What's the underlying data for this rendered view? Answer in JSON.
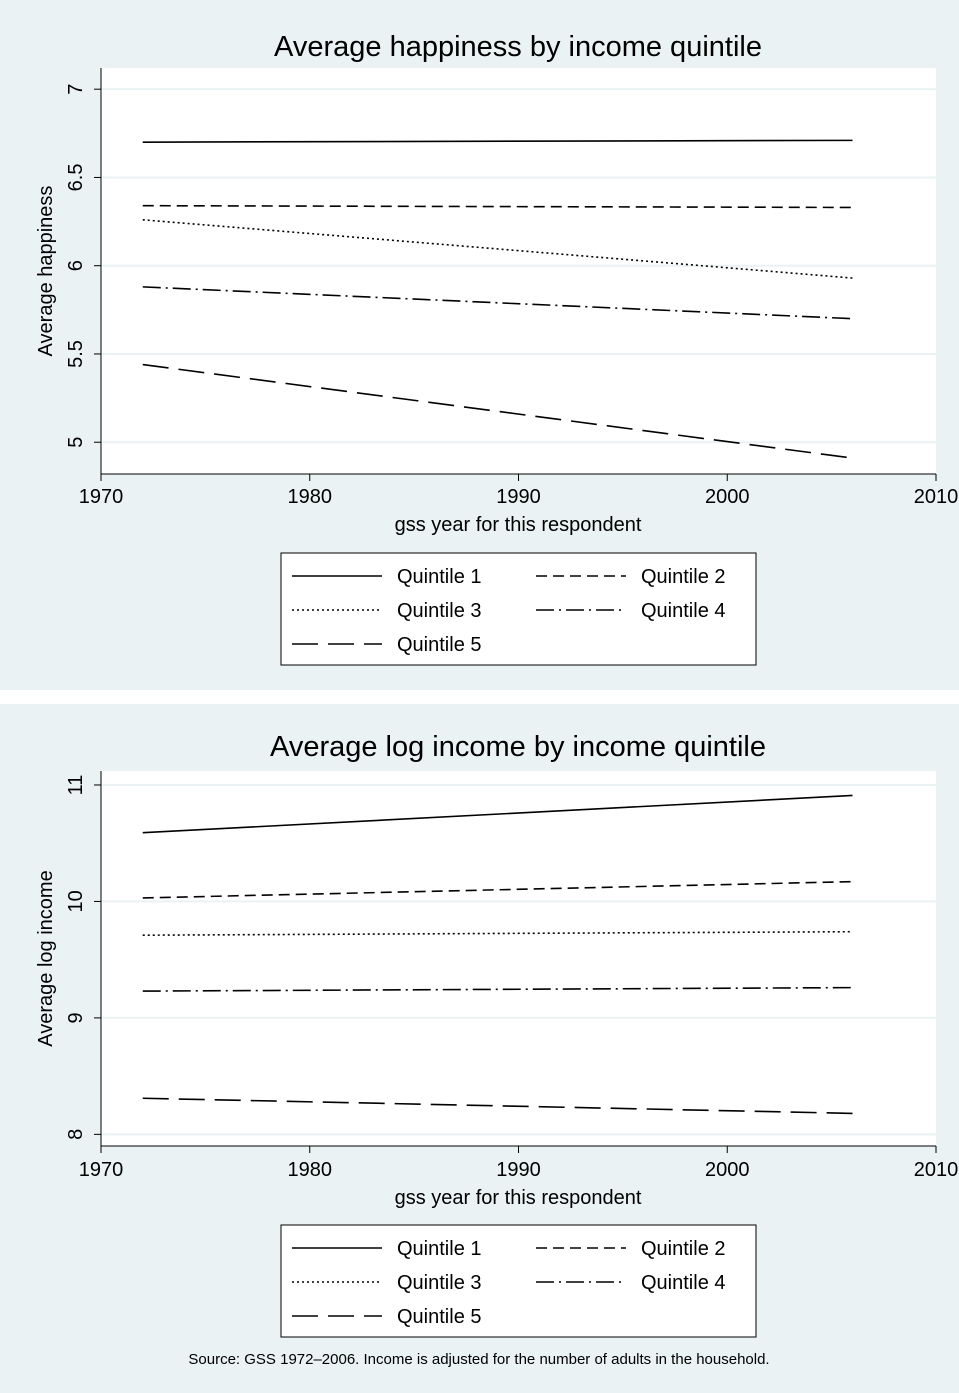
{
  "chart_data": [
    {
      "type": "line",
      "title": "Average happiness by income quintile",
      "xlabel": "gss year for this respondent",
      "ylabel": "Average happiness",
      "xlim": [
        1970,
        2010
      ],
      "ylim": [
        4.82,
        7.12
      ],
      "xticks": [
        1970,
        1980,
        1990,
        2000,
        2010
      ],
      "xtick_labels": [
        "1970",
        "1980",
        "1990",
        "2000",
        "2010"
      ],
      "yticks": [
        5,
        5.5,
        6,
        6.5,
        7
      ],
      "ytick_labels": [
        "5",
        "5.5",
        "6",
        "6.5",
        "7"
      ],
      "grid": true,
      "legend_position": "bottom",
      "series": [
        {
          "name": "Quintile 1",
          "dash": "solid",
          "x": [
            1972,
            2006
          ],
          "y": [
            6.7,
            6.71
          ]
        },
        {
          "name": "Quintile 2",
          "dash": "dash",
          "x": [
            1972,
            2006
          ],
          "y": [
            6.34,
            6.33
          ]
        },
        {
          "name": "Quintile 3",
          "dash": "dot",
          "x": [
            1972,
            2006
          ],
          "y": [
            6.26,
            5.93
          ]
        },
        {
          "name": "Quintile 4",
          "dash": "dashdot",
          "x": [
            1972,
            2006
          ],
          "y": [
            5.88,
            5.7
          ]
        },
        {
          "name": "Quintile 5",
          "dash": "longdash",
          "x": [
            1972,
            2006
          ],
          "y": [
            5.44,
            4.91
          ]
        }
      ]
    },
    {
      "type": "line",
      "title": "Average log income by income quintile",
      "xlabel": "gss year for this respondent",
      "ylabel": "Average log income",
      "xlim": [
        1970,
        2010
      ],
      "ylim": [
        7.9,
        11.12
      ],
      "xticks": [
        1970,
        1980,
        1990,
        2000,
        2010
      ],
      "xtick_labels": [
        "1970",
        "1980",
        "1990",
        "2000",
        "2010"
      ],
      "yticks": [
        8,
        9,
        10,
        11
      ],
      "ytick_labels": [
        "8",
        "9",
        "10",
        "11"
      ],
      "grid": true,
      "legend_position": "bottom",
      "series": [
        {
          "name": "Quintile 1",
          "dash": "solid",
          "x": [
            1972,
            2006
          ],
          "y": [
            10.59,
            10.91
          ]
        },
        {
          "name": "Quintile 2",
          "dash": "dash",
          "x": [
            1972,
            2006
          ],
          "y": [
            10.03,
            10.17
          ]
        },
        {
          "name": "Quintile 3",
          "dash": "dot",
          "x": [
            1972,
            2006
          ],
          "y": [
            9.71,
            9.74
          ]
        },
        {
          "name": "Quintile 4",
          "dash": "dashdot",
          "x": [
            1972,
            2006
          ],
          "y": [
            9.23,
            9.26
          ]
        },
        {
          "name": "Quintile 5",
          "dash": "longdash",
          "x": [
            1972,
            2006
          ],
          "y": [
            8.31,
            8.18
          ]
        }
      ]
    }
  ],
  "note": "Source: GSS 1972–2006. Income is adjusted for the number of adults in the household.",
  "colors": {
    "panel_background": "#eaf2f3",
    "plot_background": "#ffffff",
    "gridline": "#eaf2f3",
    "line": "#000000"
  }
}
